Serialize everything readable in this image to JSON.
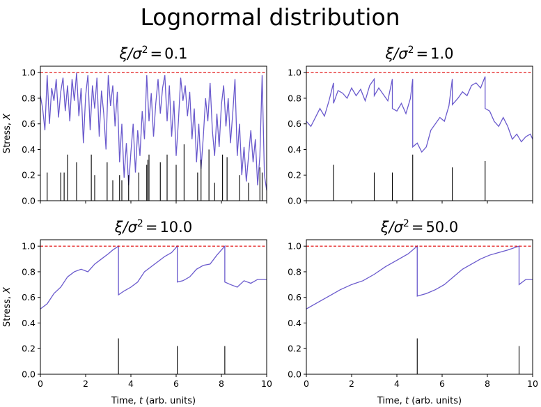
{
  "figure_title": "Lognormal distribution",
  "colors": {
    "trace": "#6a5acd",
    "threshold": "#e00000",
    "event": "#000000",
    "frame": "#000000"
  },
  "chart_data": [
    {
      "type": "line",
      "title": {
        "ratio_symbol": "ξ/σ",
        "exponent": "2",
        "equals": "=",
        "value": "0.1"
      },
      "xlabel": "",
      "ylabel": "Stress, X",
      "xlim": [
        0,
        10
      ],
      "ylim": [
        0,
        1.05
      ],
      "xticks": [
        "0",
        "2",
        "4",
        "6",
        "8",
        "10"
      ],
      "xtick_values": [
        0,
        2,
        4,
        6,
        8,
        10
      ],
      "yticks": [
        "0.0",
        "0.2",
        "0.4",
        "0.6",
        "0.8",
        "1.0"
      ],
      "ytick_values": [
        0,
        0.2,
        0.4,
        0.6,
        0.8,
        1.0
      ],
      "show_x_tick_labels": false,
      "show_y_tick_labels": true,
      "threshold": 1.0,
      "series": [
        {
          "x": [
            0,
            0.1,
            0.2,
            0.3,
            0.4,
            0.5,
            0.6,
            0.7,
            0.8,
            0.9,
            1.0,
            1.1,
            1.2,
            1.3,
            1.4,
            1.5,
            1.6,
            1.7,
            1.8,
            1.9,
            2.0,
            2.1,
            2.2,
            2.3,
            2.4,
            2.5,
            2.6,
            2.7,
            2.8,
            2.9,
            3.0,
            3.1,
            3.2,
            3.3,
            3.4,
            3.5,
            3.6,
            3.7,
            3.8,
            3.9,
            4.0,
            4.1,
            4.2,
            4.3,
            4.4,
            4.5,
            4.6,
            4.7,
            4.8,
            4.9,
            5.0,
            5.1,
            5.2,
            5.3,
            5.4,
            5.5,
            5.6,
            5.7,
            5.8,
            5.9,
            6.0,
            6.1,
            6.2,
            6.3,
            6.4,
            6.5,
            6.6,
            6.7,
            6.8,
            6.9,
            7.0,
            7.1,
            7.2,
            7.3,
            7.4,
            7.5,
            7.6,
            7.7,
            7.8,
            7.9,
            8.0,
            8.1,
            8.2,
            8.3,
            8.4,
            8.5,
            8.6,
            8.7,
            8.8,
            8.9,
            9.0,
            9.1,
            9.2,
            9.3,
            9.4,
            9.5,
            9.6,
            9.7,
            9.8,
            9.9,
            10.0
          ],
          "y": [
            0.82,
            0.72,
            0.55,
            0.98,
            0.6,
            0.88,
            0.78,
            0.95,
            0.65,
            0.85,
            0.96,
            0.7,
            0.9,
            0.62,
            0.95,
            0.78,
            1.0,
            0.66,
            0.88,
            0.45,
            0.82,
            0.98,
            0.55,
            0.9,
            0.72,
            0.96,
            0.5,
            0.86,
            0.68,
            0.4,
            0.98,
            0.74,
            0.9,
            0.58,
            0.85,
            0.3,
            0.6,
            0.18,
            0.45,
            0.12,
            0.38,
            0.6,
            0.22,
            0.55,
            0.35,
            0.7,
            0.48,
            0.98,
            0.62,
            0.84,
            0.5,
            0.76,
            0.95,
            0.68,
            0.88,
            0.98,
            0.62,
            0.9,
            0.5,
            0.78,
            0.35,
            0.62,
            0.96,
            0.78,
            0.9,
            0.66,
            0.85,
            0.48,
            0.72,
            0.3,
            0.6,
            0.25,
            0.5,
            0.8,
            0.62,
            0.92,
            0.55,
            0.35,
            0.68,
            0.42,
            0.75,
            0.9,
            0.58,
            0.8,
            0.45,
            0.68,
            0.95,
            0.35,
            0.6,
            0.2,
            0.42,
            0.15,
            0.35,
            0.55,
            0.3,
            0.48,
            0.12,
            0.35,
            0.98,
            0.2,
            0.08
          ]
        }
      ],
      "events": [
        {
          "t": 0.3,
          "h": 0.22
        },
        {
          "t": 0.9,
          "h": 0.22
        },
        {
          "t": 1.05,
          "h": 0.22
        },
        {
          "t": 1.2,
          "h": 0.36
        },
        {
          "t": 1.6,
          "h": 0.3
        },
        {
          "t": 2.25,
          "h": 0.36
        },
        {
          "t": 2.4,
          "h": 0.2
        },
        {
          "t": 2.95,
          "h": 0.3
        },
        {
          "t": 3.2,
          "h": 0.16
        },
        {
          "t": 3.5,
          "h": 0.2
        },
        {
          "t": 3.6,
          "h": 0.16
        },
        {
          "t": 3.9,
          "h": 0.2
        },
        {
          "t": 4.35,
          "h": 0.22
        },
        {
          "t": 4.7,
          "h": 0.28
        },
        {
          "t": 4.75,
          "h": 0.32
        },
        {
          "t": 4.8,
          "h": 0.36
        },
        {
          "t": 5.3,
          "h": 0.3
        },
        {
          "t": 5.6,
          "h": 0.36
        },
        {
          "t": 6.0,
          "h": 0.28
        },
        {
          "t": 6.35,
          "h": 0.44
        },
        {
          "t": 6.95,
          "h": 0.22
        },
        {
          "t": 7.1,
          "h": 0.32
        },
        {
          "t": 7.45,
          "h": 0.4
        },
        {
          "t": 7.7,
          "h": 0.14
        },
        {
          "t": 8.05,
          "h": 0.36
        },
        {
          "t": 8.25,
          "h": 0.34
        },
        {
          "t": 8.8,
          "h": 0.2
        },
        {
          "t": 9.2,
          "h": 0.14
        },
        {
          "t": 9.7,
          "h": 0.26
        },
        {
          "t": 9.8,
          "h": 0.22
        }
      ]
    },
    {
      "type": "line",
      "title": {
        "ratio_symbol": "ξ/σ",
        "exponent": "2",
        "equals": "=",
        "value": "1.0"
      },
      "xlabel": "",
      "ylabel": "",
      "xlim": [
        0,
        10
      ],
      "ylim": [
        0,
        1.05
      ],
      "xticks": [
        "0",
        "2",
        "4",
        "6",
        "8",
        "10"
      ],
      "xtick_values": [
        0,
        2,
        4,
        6,
        8,
        10
      ],
      "yticks": [
        "0.0",
        "0.2",
        "0.4",
        "0.6",
        "0.8",
        "1.0"
      ],
      "ytick_values": [
        0,
        0.2,
        0.4,
        0.6,
        0.8,
        1.0
      ],
      "show_x_tick_labels": false,
      "show_y_tick_labels": true,
      "threshold": 1.0,
      "series": [
        {
          "x": [
            0,
            0.2,
            0.4,
            0.6,
            0.8,
            1.0,
            1.2,
            1.2,
            1.4,
            1.6,
            1.8,
            2.0,
            2.2,
            2.4,
            2.6,
            2.8,
            3.0,
            3.0,
            3.2,
            3.4,
            3.6,
            3.8,
            3.8,
            4.0,
            4.2,
            4.4,
            4.6,
            4.7,
            4.7,
            4.9,
            5.1,
            5.3,
            5.5,
            5.7,
            5.9,
            6.1,
            6.3,
            6.45,
            6.45,
            6.7,
            6.9,
            7.1,
            7.3,
            7.5,
            7.7,
            7.9,
            7.9,
            8.1,
            8.3,
            8.5,
            8.7,
            8.9,
            9.1,
            9.3,
            9.5,
            9.7,
            9.9,
            10.0
          ],
          "y": [
            0.62,
            0.58,
            0.65,
            0.72,
            0.66,
            0.78,
            0.92,
            0.76,
            0.86,
            0.84,
            0.8,
            0.88,
            0.82,
            0.87,
            0.78,
            0.9,
            0.95,
            0.82,
            0.88,
            0.83,
            0.78,
            0.95,
            0.72,
            0.7,
            0.76,
            0.68,
            0.8,
            0.95,
            0.42,
            0.45,
            0.38,
            0.42,
            0.55,
            0.6,
            0.65,
            0.62,
            0.74,
            0.95,
            0.75,
            0.8,
            0.85,
            0.82,
            0.9,
            0.92,
            0.88,
            0.97,
            0.72,
            0.7,
            0.62,
            0.58,
            0.65,
            0.58,
            0.48,
            0.52,
            0.46,
            0.5,
            0.52,
            0.48
          ]
        }
      ],
      "events": [
        {
          "t": 1.2,
          "h": 0.28
        },
        {
          "t": 3.0,
          "h": 0.22
        },
        {
          "t": 3.8,
          "h": 0.22
        },
        {
          "t": 4.7,
          "h": 0.36
        },
        {
          "t": 6.45,
          "h": 0.26
        },
        {
          "t": 7.9,
          "h": 0.31
        }
      ]
    },
    {
      "type": "line",
      "title": {
        "ratio_symbol": "ξ/σ",
        "exponent": "2",
        "equals": "=",
        "value": "10.0"
      },
      "xlabel": "Time, t (arb. units)",
      "ylabel": "Stress, X",
      "xlim": [
        0,
        10
      ],
      "ylim": [
        0,
        1.05
      ],
      "xticks": [
        "0",
        "2",
        "4",
        "6",
        "8",
        "10"
      ],
      "xtick_values": [
        0,
        2,
        4,
        6,
        8,
        10
      ],
      "yticks": [
        "0.0",
        "0.2",
        "0.4",
        "0.6",
        "0.8",
        "1.0"
      ],
      "ytick_values": [
        0,
        0.2,
        0.4,
        0.6,
        0.8,
        1.0
      ],
      "show_x_tick_labels": true,
      "show_y_tick_labels": true,
      "threshold": 1.0,
      "series": [
        {
          "x": [
            0,
            0.3,
            0.6,
            0.9,
            1.2,
            1.5,
            1.8,
            2.1,
            2.4,
            2.7,
            3.0,
            3.2,
            3.45,
            3.45,
            3.7,
            4.0,
            4.3,
            4.6,
            4.9,
            5.2,
            5.5,
            5.8,
            6.05,
            6.05,
            6.3,
            6.6,
            6.9,
            7.2,
            7.5,
            7.8,
            8.15,
            8.15,
            8.4,
            8.7,
            9.0,
            9.3,
            9.6,
            10.0
          ],
          "y": [
            0.51,
            0.55,
            0.63,
            0.68,
            0.76,
            0.8,
            0.82,
            0.8,
            0.86,
            0.9,
            0.94,
            0.97,
            1.0,
            0.62,
            0.65,
            0.68,
            0.72,
            0.8,
            0.84,
            0.88,
            0.92,
            0.95,
            1.0,
            0.72,
            0.73,
            0.76,
            0.82,
            0.85,
            0.86,
            0.93,
            1.0,
            0.72,
            0.7,
            0.68,
            0.73,
            0.71,
            0.74,
            0.74
          ]
        }
      ],
      "events": [
        {
          "t": 3.45,
          "h": 0.28
        },
        {
          "t": 6.05,
          "h": 0.22
        },
        {
          "t": 8.15,
          "h": 0.22
        }
      ]
    },
    {
      "type": "line",
      "title": {
        "ratio_symbol": "ξ/σ",
        "exponent": "2",
        "equals": "=",
        "value": "50.0"
      },
      "xlabel": "Time, t (arb. units)",
      "ylabel": "",
      "xlim": [
        0,
        10
      ],
      "ylim": [
        0,
        1.05
      ],
      "xticks": [
        "0",
        "2",
        "4",
        "6",
        "8",
        "10"
      ],
      "xtick_values": [
        0,
        2,
        4,
        6,
        8,
        10
      ],
      "yticks": [
        "0.0",
        "0.2",
        "0.4",
        "0.6",
        "0.8",
        "1.0"
      ],
      "ytick_values": [
        0,
        0.2,
        0.4,
        0.6,
        0.8,
        1.0
      ],
      "show_x_tick_labels": true,
      "show_y_tick_labels": true,
      "threshold": 1.0,
      "series": [
        {
          "x": [
            0,
            0.5,
            1.0,
            1.5,
            2.0,
            2.5,
            3.0,
            3.5,
            4.0,
            4.5,
            4.9,
            4.9,
            5.3,
            5.7,
            6.1,
            6.5,
            6.9,
            7.3,
            7.7,
            8.1,
            8.5,
            8.9,
            9.4,
            9.4,
            9.7,
            10.0
          ],
          "y": [
            0.51,
            0.56,
            0.61,
            0.66,
            0.7,
            0.73,
            0.78,
            0.84,
            0.89,
            0.94,
            1.0,
            0.61,
            0.63,
            0.66,
            0.7,
            0.76,
            0.82,
            0.86,
            0.9,
            0.93,
            0.95,
            0.97,
            1.0,
            0.7,
            0.74,
            0.74
          ]
        }
      ],
      "events": [
        {
          "t": 4.9,
          "h": 0.28
        },
        {
          "t": 9.4,
          "h": 0.22
        }
      ]
    }
  ]
}
